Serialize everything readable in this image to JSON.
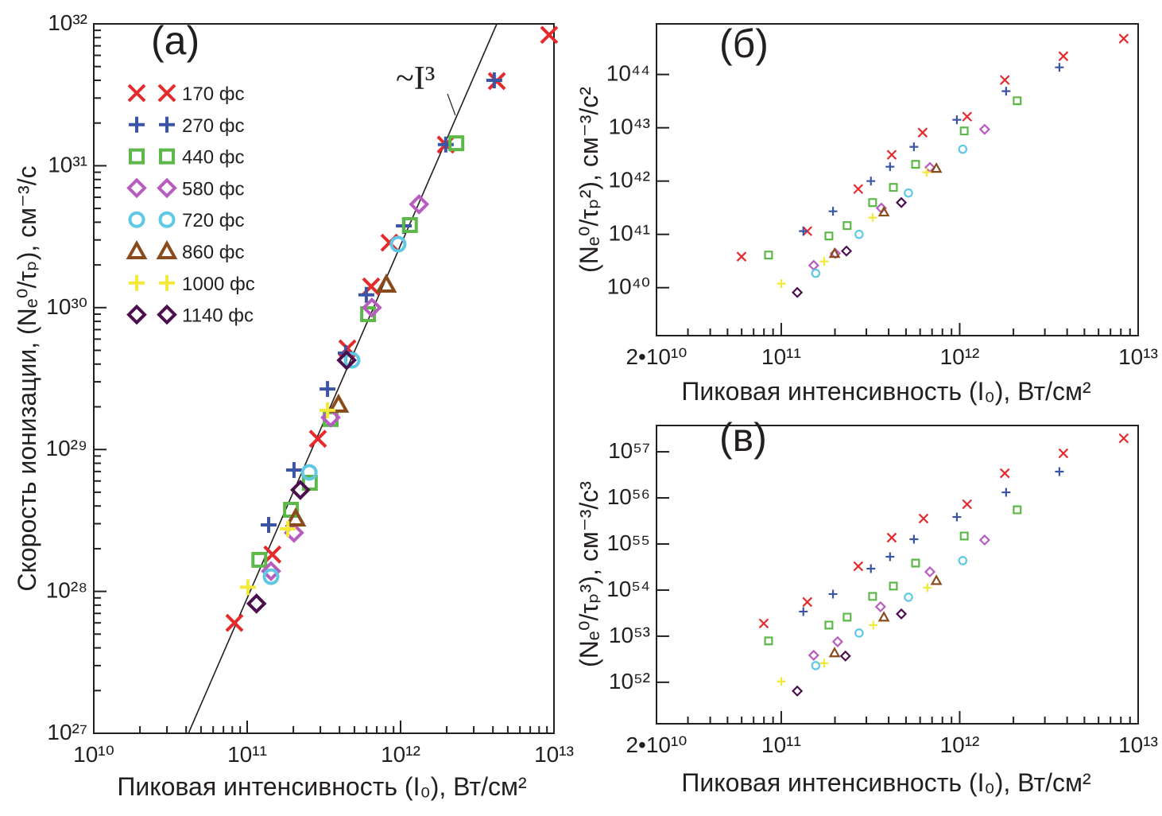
{
  "chart_data": [
    {
      "type": "scatter",
      "label": "(a)",
      "log_x": true,
      "log_y": true,
      "legend": true,
      "x_label": "Пиковая интенсивность (I₀), Вт/см²",
      "y_label": "Скорость ионизации, (Nₑ⁰/τₚ), см⁻³/с",
      "xlim": [
        10000000000.0,
        10000000000000.0
      ],
      "ylim": [
        1e+27,
        1e+32
      ],
      "xticks": [
        {
          "value": 10000000000.0,
          "label": "10¹⁰"
        },
        {
          "value": 100000000000.0,
          "label": "10¹¹"
        },
        {
          "value": 1000000000000.0,
          "label": "10¹²"
        },
        {
          "value": 10000000000000.0,
          "label": "10¹³"
        }
      ],
      "yticks": [
        {
          "value": 1e+27,
          "label": "10²⁷"
        },
        {
          "value": 1e+28,
          "label": "10²⁸"
        },
        {
          "value": 1e+29,
          "label": "10²⁹"
        },
        {
          "value": 1e+30,
          "label": "10³⁰"
        },
        {
          "value": 1e+31,
          "label": "10³¹"
        },
        {
          "value": 1e+32,
          "label": "10³²"
        }
      ],
      "x_minor_ticks": [
        20000000000.0,
        30000000000.0,
        40000000000.0,
        50000000000.0,
        60000000000.0,
        70000000000.0,
        80000000000.0,
        90000000000.0,
        200000000000.0,
        300000000000.0,
        400000000000.0,
        500000000000.0,
        600000000000.0,
        700000000000.0,
        800000000000.0,
        900000000000.0,
        2000000000000.0,
        3000000000000.0,
        4000000000000.0,
        5000000000000.0,
        6000000000000.0,
        7000000000000.0,
        8000000000000.0,
        9000000000000.0
      ],
      "y_minor_ticks": [
        2e+27,
        3e+27,
        4e+27,
        5e+27,
        6e+27,
        7e+27,
        8e+27,
        9e+27,
        2e+28,
        3e+28,
        4e+28,
        5e+28,
        6e+28,
        7e+28,
        8e+28,
        9e+28,
        2e+29,
        3e+29,
        4e+29,
        5e+29,
        6e+29,
        7e+29,
        8e+29,
        9e+29,
        2e+30,
        3e+30,
        4e+30,
        5e+30,
        6e+30,
        7e+30,
        8e+30,
        9e+30,
        2e+31,
        3e+31,
        4e+31,
        5e+31,
        6e+31,
        7e+31,
        8e+31,
        9e+31
      ],
      "fit_line": {
        "label": "~I³",
        "x": [
          41400000000.0,
          4240000000000.0
        ],
        "y": [
          1e+27,
          1e+32
        ]
      },
      "series": [
        {
          "name": "170 фс",
          "color": "#e52a2c",
          "marker": "x",
          "x": [
            82600000000.0,
            146000000000.0,
            289000000000.0,
            450000000000.0,
            643000000000.0,
            846000000000.0,
            1970000000000.0,
            4240000000000.0,
            9300000000000.0
          ],
          "y": [
            6e+27,
            1.82e+28,
            1.19e+29,
            5.16e+29,
            1.41e+30,
            2.87e+30,
            1.41e+31,
            3.95e+31,
            8.36e+31
          ]
        },
        {
          "name": "270 фс",
          "color": "#3b54a5",
          "marker": "plus",
          "x": [
            138000000000.0,
            202000000000.0,
            334000000000.0,
            439000000000.0,
            598000000000.0,
            1050000000000.0,
            1970000000000.0,
            4080000000000.0
          ],
          "y": [
            2.94e+28,
            7.17e+28,
            2.67e+29,
            4.78e+29,
            1.23e+30,
            3.77e+30,
            1.41e+31,
            4e+31
          ]
        },
        {
          "name": "440 фс",
          "color": "#5cb848",
          "marker": "square",
          "x": [
            120000000000.0,
            193000000000.0,
            256000000000.0,
            350000000000.0,
            614000000000.0,
            1150000000000.0,
            2310000000000.0
          ],
          "y": [
            1.67e+28,
            3.76e+28,
            5.83e+28,
            1.64e+29,
            9e+29,
            3.82e+30,
            1.44e+31
          ]
        },
        {
          "name": "580 фс",
          "color": "#b85cbf",
          "marker": "diamond",
          "x": [
            143000000000.0,
            202000000000.0,
            350000000000.0,
            650000000000.0,
            1320000000000.0
          ],
          "y": [
            1.39e+28,
            2.59e+28,
            1.68e+29,
            1e+30,
            5.35e+30
          ]
        },
        {
          "name": "720 фс",
          "color": "#5fc8e4",
          "marker": "circle",
          "x": [
            143000000000.0,
            254000000000.0,
            483000000000.0,
            964000000000.0
          ],
          "y": [
            1.27e+28,
            6.9e+28,
            4.26e+29,
            2.8e+30
          ]
        },
        {
          "name": "860 фс",
          "color": "#8a4b1c",
          "marker": "triangle",
          "x": [
            207000000000.0,
            394000000000.0,
            807000000000.0
          ],
          "y": [
            3.26e+28,
            2.07e+29,
            1.45e+30
          ]
        },
        {
          "name": "1000 фс",
          "color": "#f2e93a",
          "marker": "plus",
          "x": [
            101000000000.0,
            184000000000.0,
            334000000000.0
          ],
          "y": [
            1.07e+28,
            2.76e+28,
            1.89e+29
          ]
        },
        {
          "name": "1140 фс",
          "color": "#4b0f4e",
          "marker": "diamond",
          "x": [
            115000000000.0,
            222000000000.0,
            445000000000.0
          ],
          "y": [
            8.2e+27,
            5.19e+28,
            4.26e+29
          ]
        }
      ]
    },
    {
      "type": "scatter",
      "label": "(б)",
      "log_x": true,
      "log_y": true,
      "x_label": "Пиковая интенсивность (I₀), Вт/см²",
      "y_label": "(Nₑ⁰/τₚ²), см⁻³/с²",
      "xlim": [
        20000000000.0,
        10000000000000.0
      ],
      "ylim": [
        1.26e+39,
        8.9e+44
      ],
      "xticks": [
        {
          "value": 20000000000.0,
          "label": "2•10¹⁰"
        },
        {
          "value": 100000000000.0,
          "label": "10¹¹"
        },
        {
          "value": 1000000000000.0,
          "label": "10¹²"
        },
        {
          "value": 10000000000000.0,
          "label": "10¹³"
        }
      ],
      "yticks": [
        {
          "value": 1e+40,
          "label": "10⁴⁰"
        },
        {
          "value": 1e+41,
          "label": "10⁴¹"
        },
        {
          "value": 1e+42,
          "label": "10⁴²"
        },
        {
          "value": 1e+43,
          "label": "10⁴³"
        },
        {
          "value": 1e+44,
          "label": "10⁴⁴"
        }
      ],
      "x_minor_ticks": [
        30000000000.0,
        40000000000.0,
        50000000000.0,
        60000000000.0,
        70000000000.0,
        80000000000.0,
        90000000000.0,
        200000000000.0,
        300000000000.0,
        400000000000.0,
        500000000000.0,
        600000000000.0,
        700000000000.0,
        800000000000.0,
        900000000000.0,
        2000000000000.0,
        3000000000000.0,
        4000000000000.0,
        5000000000000.0,
        6000000000000.0,
        7000000000000.0,
        8000000000000.0,
        9000000000000.0
      ],
      "series": [
        {
          "color": "#e52a2c",
          "marker": "x",
          "x": [
            59900000000.0,
            140000000000.0,
            270000000000.0,
            416000000000.0,
            620000000000.0,
            1100000000000.0,
            1790000000000.0,
            3810000000000.0,
            8300000000000.0
          ],
          "y": [
            3.82e+40,
            1.15e+41,
            7.1e+41,
            3.11e+42,
            8.13e+42,
            1.62e+43,
            7.87e+43,
            2.2e+44,
            4.7e+44
          ]
        },
        {
          "color": "#3b54a5",
          "marker": "plus",
          "x": [
            133000000000.0,
            195000000000.0,
            318000000000.0,
            407000000000.0,
            554000000000.0,
            964000000000.0,
            1820000000000.0,
            3620000000000.0
          ],
          "y": [
            1.15e+41,
            2.71e+41,
            1e+42,
            1.86e+42,
            4.39e+42,
            1.41e+43,
            4.86e+43,
            1.36e+44
          ]
        },
        {
          "color": "#5cb848",
          "marker": "square",
          "x": [
            84900000000.0,
            185000000000.0,
            234000000000.0,
            325000000000.0,
            425000000000.0,
            566000000000.0,
            1060000000000.0,
            2100000000000.0
          ],
          "y": [
            4.09e+40,
            9.33e+40,
            1.46e+41,
            3.95e+41,
            7.6e+41,
            2.06e+42,
            8.71e+42,
            3.21e+43
          ]
        },
        {
          "color": "#b85cbf",
          "marker": "diamond",
          "x": [
            152000000000.0,
            201000000000.0,
            364000000000.0,
            681000000000.0,
            1380000000000.0
          ],
          "y": [
            2.62e+40,
            4.38e+40,
            3.11e+41,
            1.8e+42,
            9.33e+42
          ]
        },
        {
          "color": "#5fc8e4",
          "marker": "circle",
          "x": [
            156000000000.0,
            273000000000.0,
            516000000000.0,
            1040000000000.0
          ],
          "y": [
            1.86e+40,
            1e+41,
            5.97e+41,
            3.96e+42
          ]
        },
        {
          "color": "#8a4b1c",
          "marker": "triangle",
          "x": [
            199000000000.0,
            376000000000.0,
            740000000000.0
          ],
          "y": [
            4.38e+40,
            2.62e+41,
            1.73e+42
          ]
        },
        {
          "color": "#f2e93a",
          "marker": "plus",
          "x": [
            100000000000.0,
            174000000000.0,
            325000000000.0,
            653000000000.0
          ],
          "y": [
            1.19e+40,
            3.11e+40,
            2.06e+41,
            1.46e+42
          ]
        },
        {
          "color": "#4b0f4e",
          "marker": "diamond",
          "x": [
            123000000000.0,
            232000000000.0,
            471000000000.0
          ],
          "y": [
            8.13e+39,
            4.87e+40,
            3.95e+41
          ]
        }
      ]
    },
    {
      "type": "scatter",
      "label": "(в)",
      "log_x": true,
      "log_y": true,
      "x_label": "Пиковая интенсивность (I₀), Вт/см²",
      "y_label": "(Nₑ⁰/τₚ³), см⁻³/с³",
      "xlim": [
        20000000000.0,
        10000000000000.0
      ],
      "ylim": [
        1.26e+51,
        3.72e+57
      ],
      "xticks": [
        {
          "value": 20000000000.0,
          "label": "2•10¹⁰"
        },
        {
          "value": 100000000000.0,
          "label": "10¹¹"
        },
        {
          "value": 1000000000000.0,
          "label": "10¹²"
        },
        {
          "value": 10000000000000.0,
          "label": "10¹³"
        }
      ],
      "yticks": [
        {
          "value": 1e+52,
          "label": "10⁵²"
        },
        {
          "value": 1e+53,
          "label": "10⁵³"
        },
        {
          "value": 1e+54,
          "label": "10⁵⁴"
        },
        {
          "value": 1e+55,
          "label": "10⁵⁵"
        },
        {
          "value": 1e+56,
          "label": "10⁵⁶"
        },
        {
          "value": 1e+57,
          "label": "10⁵⁷"
        }
      ],
      "x_minor_ticks": [
        30000000000.0,
        40000000000.0,
        50000000000.0,
        60000000000.0,
        70000000000.0,
        80000000000.0,
        90000000000.0,
        200000000000.0,
        300000000000.0,
        400000000000.0,
        500000000000.0,
        600000000000.0,
        700000000000.0,
        800000000000.0,
        900000000000.0,
        2000000000000.0,
        3000000000000.0,
        4000000000000.0,
        5000000000000.0,
        6000000000000.0,
        7000000000000.0,
        8000000000000.0,
        9000000000000.0
      ],
      "series": [
        {
          "color": "#e52a2c",
          "marker": "x",
          "x": [
            79800000000.0,
            140000000000.0,
            270000000000.0,
            416000000000.0,
            627000000000.0,
            1100000000000.0,
            1790000000000.0,
            3810000000000.0,
            8300000000000.0
          ],
          "y": [
            1.89e+53,
            5.51e+53,
            3.29e+54,
            1.37e+55,
            3.56e+55,
            7.28e+55,
            3.42e+56,
            9.25e+56,
            1.96e+57
          ]
        },
        {
          "color": "#3b54a5",
          "marker": "plus",
          "x": [
            133000000000.0,
            195000000000.0,
            318000000000.0,
            407000000000.0,
            554000000000.0,
            964000000000.0,
            1820000000000.0,
            3620000000000.0
          ],
          "y": [
            3.42e+53,
            8.2e+53,
            2.92e+54,
            5.3e+54,
            1.27e+55,
            3.85e+55,
            1.32e+56,
            3.71e+56
          ]
        },
        {
          "color": "#5cb848",
          "marker": "square",
          "x": [
            84900000000.0,
            185000000000.0,
            234000000000.0,
            325000000000.0,
            425000000000.0,
            566000000000.0,
            1060000000000.0,
            2100000000000.0
          ],
          "y": [
            7.89e+52,
            1.74e+53,
            2.59e+53,
            7.28e+53,
            1.22e+54,
            3.85e+54,
            1.49e+55,
            5.51e+55
          ]
        },
        {
          "color": "#b85cbf",
          "marker": "diamond",
          "x": [
            152000000000.0,
            207000000000.0,
            360000000000.0,
            681000000000.0,
            1380000000000.0
          ],
          "y": [
            3.85e+52,
            7.57e+52,
            4.35e+53,
            2.49e+54,
            1.22e+55
          ]
        },
        {
          "color": "#5fc8e4",
          "marker": "circle",
          "x": [
            156000000000.0,
            273000000000.0,
            516000000000.0,
            1040000000000.0
          ],
          "y": [
            2.3e+52,
            1.17e+53,
            7e+53,
            4.35e+54
          ]
        },
        {
          "color": "#8a4b1c",
          "marker": "triangle",
          "x": [
            199000000000.0,
            376000000000.0,
            740000000000.0
          ],
          "y": [
            4.35e+52,
            2.59e+53,
            1.61e+54
          ]
        },
        {
          "color": "#f2e93a",
          "marker": "plus",
          "x": [
            100000000000.0,
            174000000000.0,
            328000000000.0,
            660000000000.0
          ],
          "y": [
            1.04e+52,
            2.59e+52,
            1.74e+53,
            1.13e+54
          ]
        },
        {
          "color": "#4b0f4e",
          "marker": "diamond",
          "x": [
            123000000000.0,
            229000000000.0,
            471000000000.0
          ],
          "y": [
            6.46e+51,
            3.71e+52,
            3.04e+53
          ]
        }
      ]
    }
  ]
}
